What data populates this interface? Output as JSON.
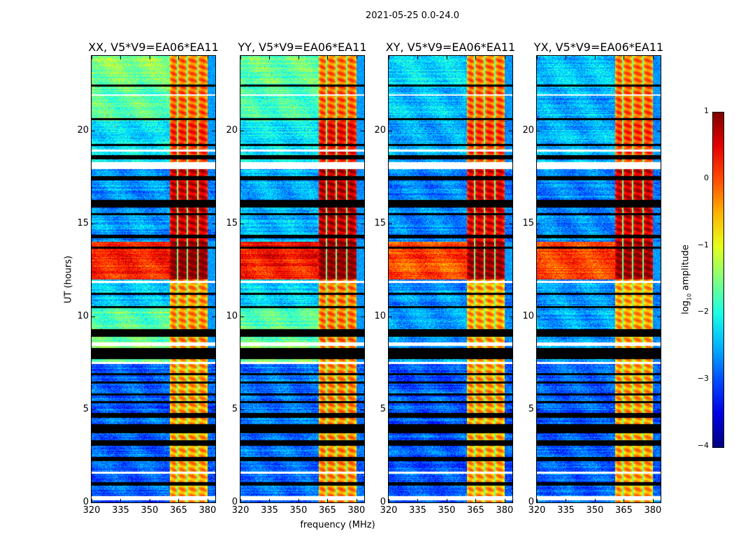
{
  "suptitle": "2021-05-25 0.0-24.0",
  "chart_data": {
    "type": "heatmap",
    "title": "2021-05-25 0.0-24.0",
    "xlabel": "frequency (MHz)",
    "ylabel": "UT (hours)",
    "xlim": [
      320,
      384
    ],
    "ylim": [
      0,
      24
    ],
    "xticks": [
      320,
      335,
      350,
      365,
      380
    ],
    "yticks": [
      0,
      5,
      10,
      15,
      20
    ],
    "panels": [
      {
        "title": "XX, V5*V9=EA06*EA11"
      },
      {
        "title": "YY, V5*V9=EA06*EA11"
      },
      {
        "title": "XY, V5*V9=EA06*EA11"
      },
      {
        "title": "YX, V5*V9=EA06*EA11"
      }
    ],
    "colorbar": {
      "label_main": "log",
      "label_sub": "10",
      "label_rest": " amplitude",
      "range": [
        -4,
        1
      ],
      "ticks": [
        1,
        0,
        -1,
        -2,
        -3,
        -4
      ],
      "tick_labels": [
        "1",
        "0",
        "−1",
        "−2",
        "−3",
        "−4"
      ],
      "colormap": "jet"
    },
    "rfi_band_mhz": [
      360.5,
      380
    ],
    "subband_edges_mhz": [
      364.5,
      369.5,
      375
    ],
    "time_segments": [
      {
        "hours": [
          22.5,
          24
        ],
        "low_band": [
          -1.5,
          -1.6,
          -2.3,
          -2.4
        ],
        "rfi_band": [
          -0.3,
          -0.3,
          -0.3,
          -0.3
        ]
      },
      {
        "hours": [
          20.5,
          22.5
        ],
        "low_band": [
          -1.7,
          -1.8,
          -2.4,
          -2.5
        ],
        "rfi_band": [
          -0.2,
          -0.2,
          -0.2,
          -0.2
        ]
      },
      {
        "hours": [
          18,
          20.5
        ],
        "low_band": [
          -2.2,
          -2.2,
          -2.5,
          -2.5
        ],
        "rfi_band": [
          0.1,
          0.3,
          0.0,
          0.0
        ]
      },
      {
        "hours": [
          14,
          18
        ],
        "low_band": [
          -2.6,
          -2.5,
          -2.7,
          -2.7
        ],
        "rfi_band": [
          0.5,
          0.6,
          0.4,
          0.5
        ]
      },
      {
        "hours": [
          12,
          14
        ],
        "low_band": [
          0.2,
          0.3,
          0.0,
          0.0
        ],
        "rfi_band": [
          0.9,
          0.9,
          0.8,
          0.8
        ]
      },
      {
        "hours": [
          10.5,
          12
        ],
        "low_band": [
          -2.4,
          -2.3,
          -2.6,
          -2.6
        ],
        "rfi_band": [
          -0.4,
          -0.3,
          -0.5,
          -0.5
        ]
      },
      {
        "hours": [
          8.6,
          10.5
        ],
        "low_band": [
          -1.7,
          -1.7,
          -2.6,
          -2.6
        ],
        "rfi_band": [
          -0.4,
          -0.3,
          -0.5,
          -0.5
        ]
      },
      {
        "hours": [
          7.5,
          8.6
        ],
        "low_band": [
          -1.5,
          -1.5,
          -2.5,
          -2.5
        ],
        "rfi_band": [
          -0.6,
          -0.5,
          -0.6,
          -0.6
        ]
      },
      {
        "hours": [
          0,
          7.5
        ],
        "low_band": [
          -2.9,
          -2.8,
          -2.9,
          -2.9
        ],
        "rfi_band": [
          -0.5,
          -0.4,
          -0.5,
          -0.5
        ]
      }
    ],
    "flagged_black_hours": [
      [
        22.35,
        22.45
      ],
      [
        20.55,
        20.65
      ],
      [
        19.15,
        19.25
      ],
      [
        18.45,
        18.65
      ],
      [
        17.3,
        17.55
      ],
      [
        15.85,
        16.25
      ],
      [
        15.45,
        15.55
      ],
      [
        14.2,
        14.4
      ],
      [
        13.65,
        13.75
      ],
      [
        11.15,
        11.25
      ],
      [
        10.45,
        10.55
      ],
      [
        8.9,
        9.3
      ],
      [
        7.7,
        8.3
      ],
      [
        6.85,
        6.95
      ],
      [
        6.4,
        6.5
      ],
      [
        5.75,
        5.85
      ],
      [
        5.35,
        5.45
      ],
      [
        4.55,
        4.8
      ],
      [
        3.7,
        4.2
      ],
      [
        3.05,
        3.35
      ],
      [
        2.2,
        2.45
      ],
      [
        0.92,
        1.08
      ]
    ],
    "flagged_white_hours": [
      [
        21.85,
        21.95
      ],
      [
        18.85,
        18.95
      ],
      [
        17.9,
        18.3
      ],
      [
        11.8,
        11.9
      ],
      [
        8.4,
        8.6
      ],
      [
        7.45,
        7.55
      ],
      [
        1.55,
        1.65
      ],
      [
        0.1,
        0.35
      ]
    ]
  }
}
